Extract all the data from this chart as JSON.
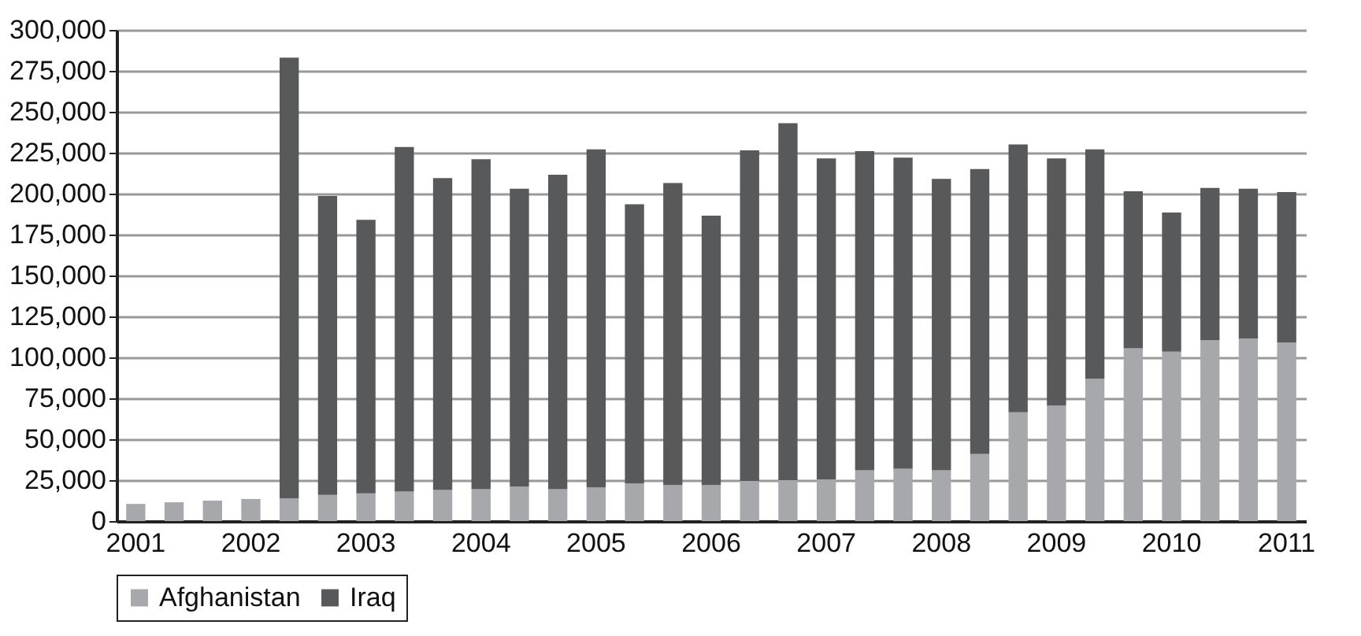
{
  "chart_data": {
    "type": "bar",
    "stacked": true,
    "categories": [
      "2001",
      null,
      null,
      "2002",
      null,
      null,
      "2003",
      null,
      null,
      "2004",
      null,
      null,
      "2005",
      null,
      null,
      "2006",
      null,
      null,
      "2007",
      null,
      null,
      "2008",
      null,
      null,
      "2009",
      null,
      null,
      "2010",
      null,
      null,
      "2011"
    ],
    "series": [
      {
        "name": "Afghanistan",
        "color": "#a7a8ab",
        "values": [
          10500,
          11500,
          12500,
          13500,
          14000,
          16000,
          17000,
          18000,
          19000,
          19500,
          21000,
          19500,
          20500,
          23000,
          22000,
          22000,
          24500,
          25000,
          25500,
          31000,
          32000,
          31000,
          41000,
          66500,
          70500,
          87000,
          105500,
          103500,
          110500,
          111500,
          109000
        ]
      },
      {
        "name": "Iraq",
        "color": "#58595b",
        "values": [
          null,
          null,
          null,
          null,
          269000,
          182500,
          167000,
          210500,
          190500,
          201500,
          182000,
          192000,
          206500,
          170500,
          184500,
          164500,
          202000,
          218000,
          196000,
          195000,
          190000,
          178000,
          174000,
          163500,
          151000,
          140000,
          96000,
          85000,
          93000,
          91500,
          92000
        ]
      }
    ],
    "ylim": [
      0,
      300000
    ],
    "yticks": [
      {
        "value": 0,
        "label": "0"
      },
      {
        "value": 25000,
        "label": "25,000"
      },
      {
        "value": 50000,
        "label": "50,000"
      },
      {
        "value": 75000,
        "label": "75,000"
      },
      {
        "value": 100000,
        "label": "100,000"
      },
      {
        "value": 125000,
        "label": "125,000"
      },
      {
        "value": 150000,
        "label": "150,000"
      },
      {
        "value": 175000,
        "label": "175,000"
      },
      {
        "value": 200000,
        "label": "200,000"
      },
      {
        "value": 225000,
        "label": "225,000"
      },
      {
        "value": 250000,
        "label": "250,000"
      },
      {
        "value": 275000,
        "label": "275,000"
      },
      {
        "value": 300000,
        "label": "300,000"
      }
    ],
    "grid": "y",
    "legend": "bottom"
  }
}
